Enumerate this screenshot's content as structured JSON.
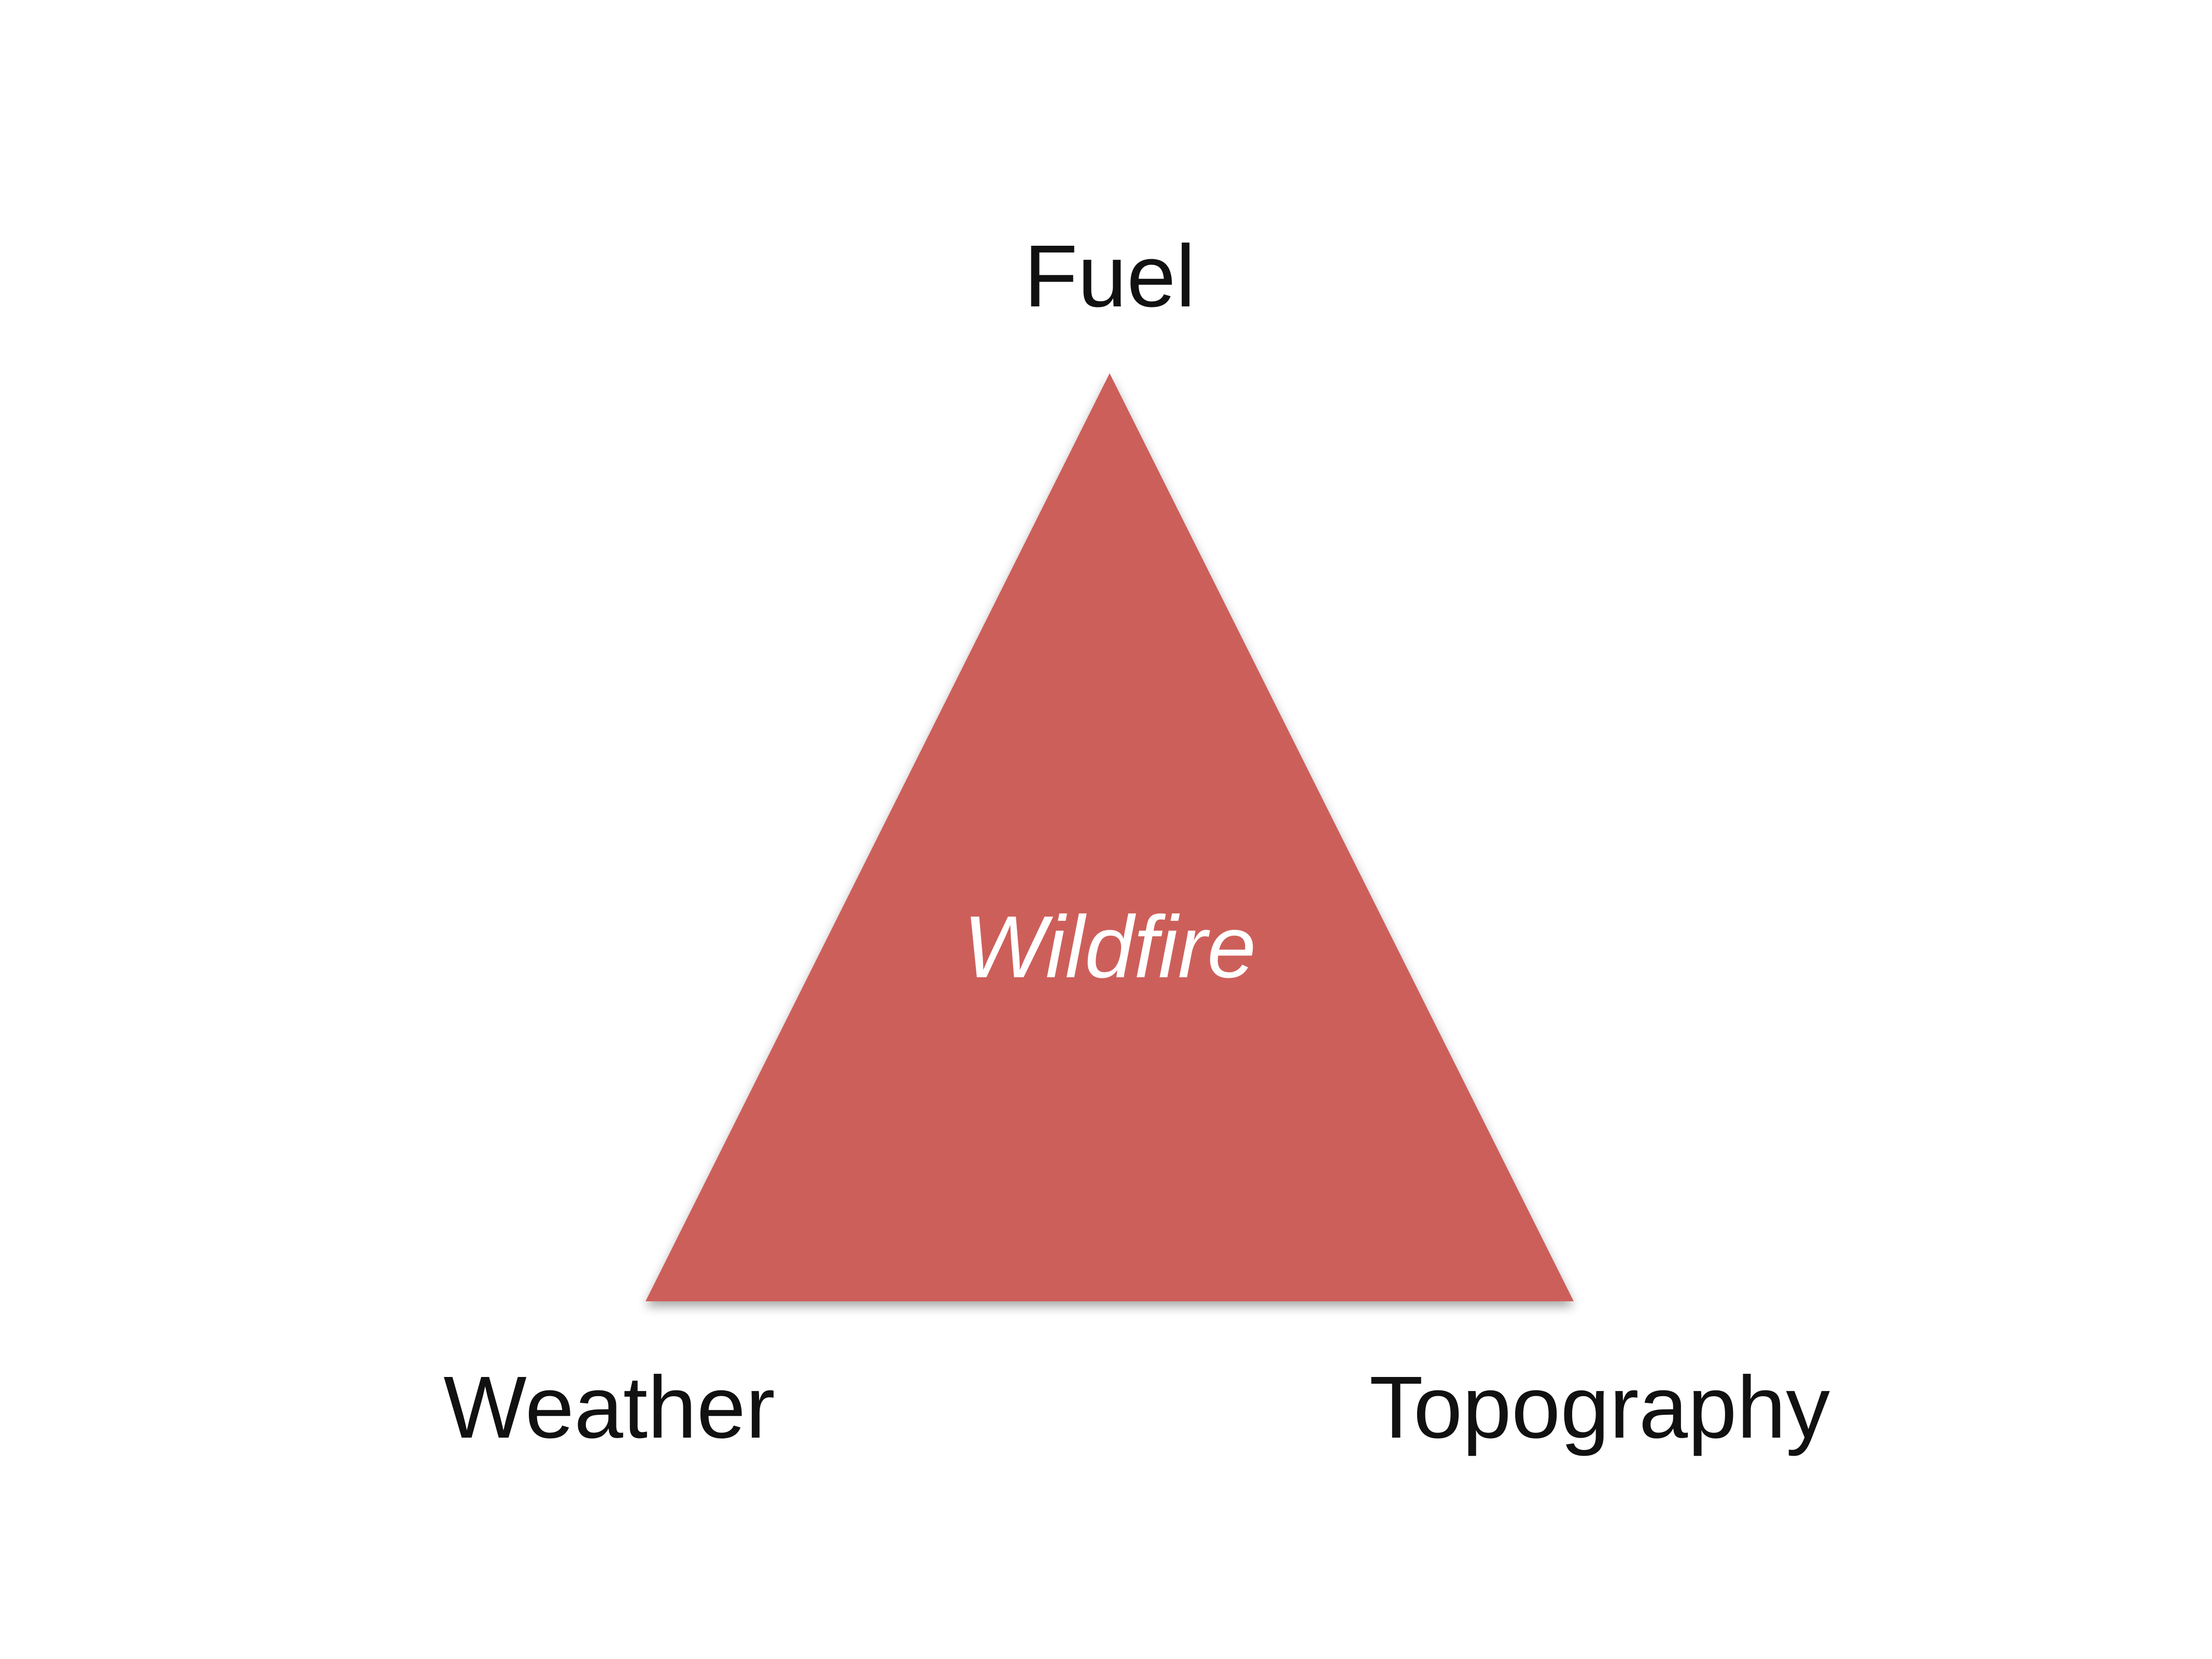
{
  "diagram": {
    "center_label": "Wildfire",
    "triangle_color": "#cd5e5a",
    "corners": {
      "top": "Fuel",
      "bottom_left": "Weather",
      "bottom_right": "Topography"
    }
  }
}
